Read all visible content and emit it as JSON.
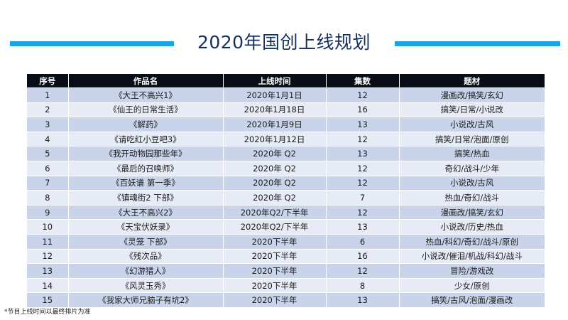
{
  "title": "2020年国创上线规划",
  "table": {
    "headers": [
      "序号",
      "作品名",
      "上线时间",
      "集数",
      "题材"
    ],
    "rows": [
      [
        "1",
        "《大王不高兴1》",
        "2020年1月1日",
        "12",
        "漫画改/搞笑/玄幻"
      ],
      [
        "2",
        "《仙王的日常生活》",
        "2020年1月18日",
        "16",
        "搞笑/日常/小说改"
      ],
      [
        "3",
        "《解药》",
        "2020年1月9日",
        "13",
        "小说改/古风"
      ],
      [
        "4",
        "《请吃红小豆吧3》",
        "2020年1月12日",
        "12",
        "搞笑/日常/泡面/原创"
      ],
      [
        "5",
        "《我开动物园那些年》",
        "2020年 Q2",
        "13",
        "搞笑/热血"
      ],
      [
        "6",
        "《最后的召唤师》",
        "2020年 Q2",
        "12",
        "奇幻/战斗/少年"
      ],
      [
        "7",
        "《百妖谱 第一季》",
        "2020年 Q2",
        "12",
        "小说改/古风"
      ],
      [
        "8",
        "《镇魂街2 下部》",
        "2020年 Q2",
        "7",
        "热血/奇幻/战斗"
      ],
      [
        "9",
        "《大王不高兴2》",
        "2020年Q2/下半年",
        "12",
        "漫画改/搞笑/玄幻"
      ],
      [
        "10",
        "《天宝伏妖录》",
        "2020年Q2/下半年",
        "13",
        "小说改/历史/热血"
      ],
      [
        "11",
        "《灵笼 下部》",
        "2020下半年",
        "6",
        "热血/科幻/奇幻/战斗/原创"
      ],
      [
        "12",
        "《残次品》",
        "2020下半年",
        "16",
        "小说改/催泪/机战/科幻/战斗"
      ],
      [
        "13",
        "《幻游猎人》",
        "2020下半年",
        "12",
        "冒险/游戏改"
      ],
      [
        "14",
        "《风灵玉秀》",
        "2020下半年",
        "8",
        "少女/原创"
      ],
      [
        "15",
        "《我家大师兄脑子有坑2》",
        "2020下半年",
        "13",
        "搞笑/古风/泡面/漫画改"
      ]
    ]
  },
  "footnote": "*节目上线时间以最终排片为准",
  "colors": {
    "accent_rule": "#1aa3e8",
    "title": "#16305c",
    "header_bg": "#080d18",
    "row_odd": "#c9d4ea",
    "row_even": "#e6ebf5"
  }
}
